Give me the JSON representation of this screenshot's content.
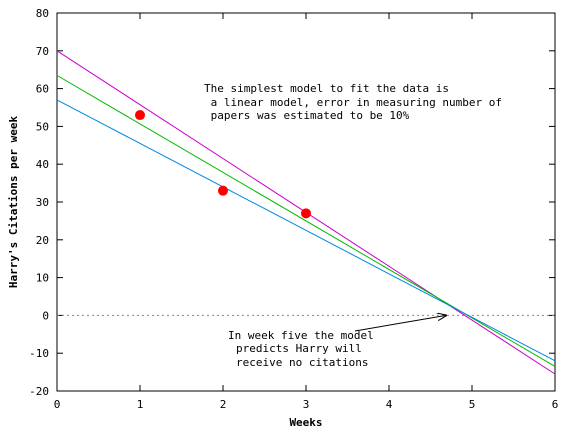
{
  "chart_data": {
    "type": "line",
    "title": "",
    "xlabel": "Weeks",
    "ylabel": "Harry's Citations per week",
    "xlim": [
      0,
      6
    ],
    "ylim": [
      -20,
      80
    ],
    "x_ticks": [
      0,
      1,
      2,
      3,
      4,
      5,
      6
    ],
    "y_ticks": [
      -20,
      -10,
      0,
      10,
      20,
      30,
      40,
      50,
      60,
      70,
      80
    ],
    "x_tick_labels": [
      "0",
      "1",
      "2",
      "3",
      "4",
      "5",
      "6"
    ],
    "y_tick_labels": [
      "-20",
      "-10",
      "0",
      "10",
      "20",
      "30",
      "40",
      "50",
      "60",
      "70",
      "80"
    ],
    "grid": false,
    "zero_line": {
      "y": 0,
      "style": "dotted",
      "color": "#888888"
    },
    "scatter_points": {
      "color": "#ff0000",
      "points": [
        {
          "x": 1,
          "y": 53
        },
        {
          "x": 2,
          "y": 33
        },
        {
          "x": 3,
          "y": 27
        }
      ]
    },
    "series": [
      {
        "color": "#cc00cc",
        "x": [
          0,
          6
        ],
        "y": [
          70,
          -15.5
        ]
      },
      {
        "color": "#00bb00",
        "x": [
          0,
          6
        ],
        "y": [
          63.5,
          -13.5
        ]
      },
      {
        "color": "#0088dd",
        "x": [
          0,
          6
        ],
        "y": [
          57,
          -12
        ]
      }
    ],
    "annotations": [
      {
        "lines": [
          "The simplest model to fit the data is",
          " a linear model, error in measuring number of",
          " papers was estimated to be 10%"
        ]
      },
      {
        "lines": [
          "In week five the model",
          "predicts Harry will",
          "receive no citations"
        ],
        "arrow_to": {
          "x": 4.7,
          "y": 0
        }
      }
    ]
  }
}
